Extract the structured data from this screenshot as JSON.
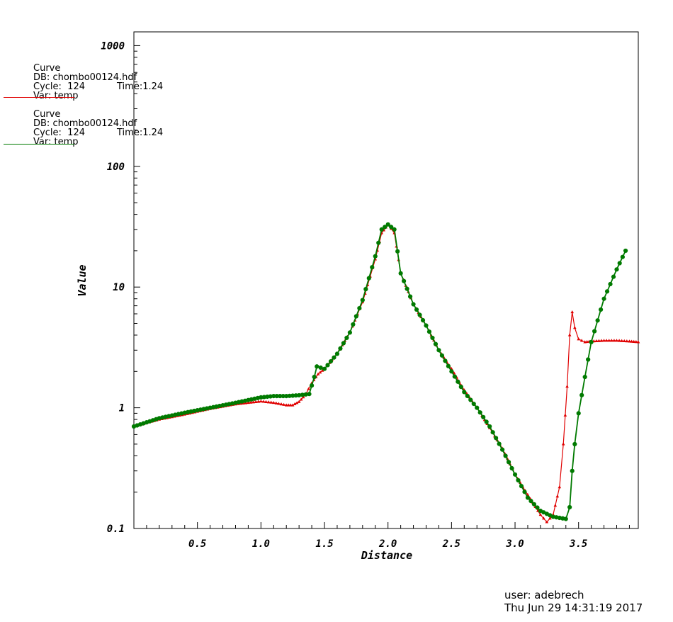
{
  "legend": [
    {
      "title": "Curve",
      "db": "DB: chombo00124.hdf",
      "cycle": "Cycle:  124",
      "time": "Time:1.24",
      "var": "Var: temp",
      "color": "#e00000"
    },
    {
      "title": "Curve",
      "db": "DB: chombo00124.hdf",
      "cycle": "Cycle:  124",
      "time": "Time:1.24",
      "var": "Var: temp",
      "color": "#007a00"
    }
  ],
  "footer": {
    "user": "user: adebrech",
    "date": "Thu Jun 29 14:31:19 2017"
  },
  "chart_data": {
    "type": "line",
    "xlabel": "Distance",
    "ylabel": "Value",
    "xlim": [
      0,
      3.97
    ],
    "ylim": [
      0.1,
      1300
    ],
    "yscale": "log",
    "xticks": [
      0.5,
      1.0,
      1.5,
      2.0,
      2.5,
      3.0,
      3.5
    ],
    "xtick_labels": [
      "0.5",
      "1.0",
      "1.5",
      "2.0",
      "2.5",
      "3.0",
      "3.5"
    ],
    "yticks": [
      0.1,
      1,
      10,
      100,
      1000
    ],
    "ytick_labels": [
      "0.1",
      "1",
      "10",
      "100",
      "1000"
    ],
    "grid": false,
    "series": [
      {
        "color": "#e00000",
        "marker": "triangle",
        "x": [
          0.0,
          0.2,
          0.4,
          0.6,
          0.8,
          1.0,
          1.1,
          1.2,
          1.25,
          1.3,
          1.35,
          1.4,
          1.45,
          1.5,
          1.6,
          1.7,
          1.8,
          1.9,
          1.95,
          2.0,
          2.05,
          2.1,
          2.2,
          2.3,
          2.4,
          2.5,
          2.6,
          2.7,
          2.8,
          2.9,
          3.0,
          3.1,
          3.2,
          3.25,
          3.3,
          3.35,
          3.38,
          3.41,
          3.43,
          3.45,
          3.47,
          3.5,
          3.55,
          3.6,
          3.7,
          3.8,
          3.9,
          3.97
        ],
        "y": [
          0.7,
          0.8,
          0.88,
          0.98,
          1.07,
          1.13,
          1.1,
          1.05,
          1.05,
          1.12,
          1.28,
          1.6,
          1.9,
          2.1,
          2.8,
          4.2,
          7.5,
          17,
          28,
          33,
          28,
          13,
          7.2,
          4.8,
          3.0,
          2.1,
          1.4,
          1.0,
          0.68,
          0.46,
          0.28,
          0.19,
          0.13,
          0.113,
          0.13,
          0.22,
          0.5,
          1.5,
          4.0,
          6.2,
          4.6,
          3.7,
          3.5,
          3.55,
          3.6,
          3.6,
          3.55,
          3.5
        ]
      },
      {
        "color": "#007a00",
        "marker": "circle",
        "x": [
          0.0,
          0.2,
          0.4,
          0.6,
          0.8,
          1.0,
          1.1,
          1.2,
          1.3,
          1.38,
          1.42,
          1.44,
          1.5,
          1.6,
          1.7,
          1.8,
          1.9,
          1.95,
          2.0,
          2.05,
          2.1,
          2.2,
          2.3,
          2.4,
          2.5,
          2.6,
          2.7,
          2.8,
          2.9,
          3.0,
          3.1,
          3.2,
          3.3,
          3.4,
          3.43,
          3.45,
          3.47,
          3.5,
          3.55,
          3.6,
          3.7,
          3.8,
          3.87
        ],
        "y": [
          0.7,
          0.82,
          0.91,
          1.0,
          1.1,
          1.22,
          1.25,
          1.25,
          1.27,
          1.3,
          1.8,
          2.2,
          2.1,
          2.8,
          4.2,
          7.8,
          18,
          30,
          33,
          30,
          13,
          7.2,
          4.8,
          3.0,
          2.0,
          1.35,
          1.0,
          0.7,
          0.45,
          0.28,
          0.18,
          0.14,
          0.125,
          0.12,
          0.15,
          0.3,
          0.5,
          0.9,
          1.8,
          3.5,
          8.0,
          14,
          20
        ]
      }
    ]
  }
}
